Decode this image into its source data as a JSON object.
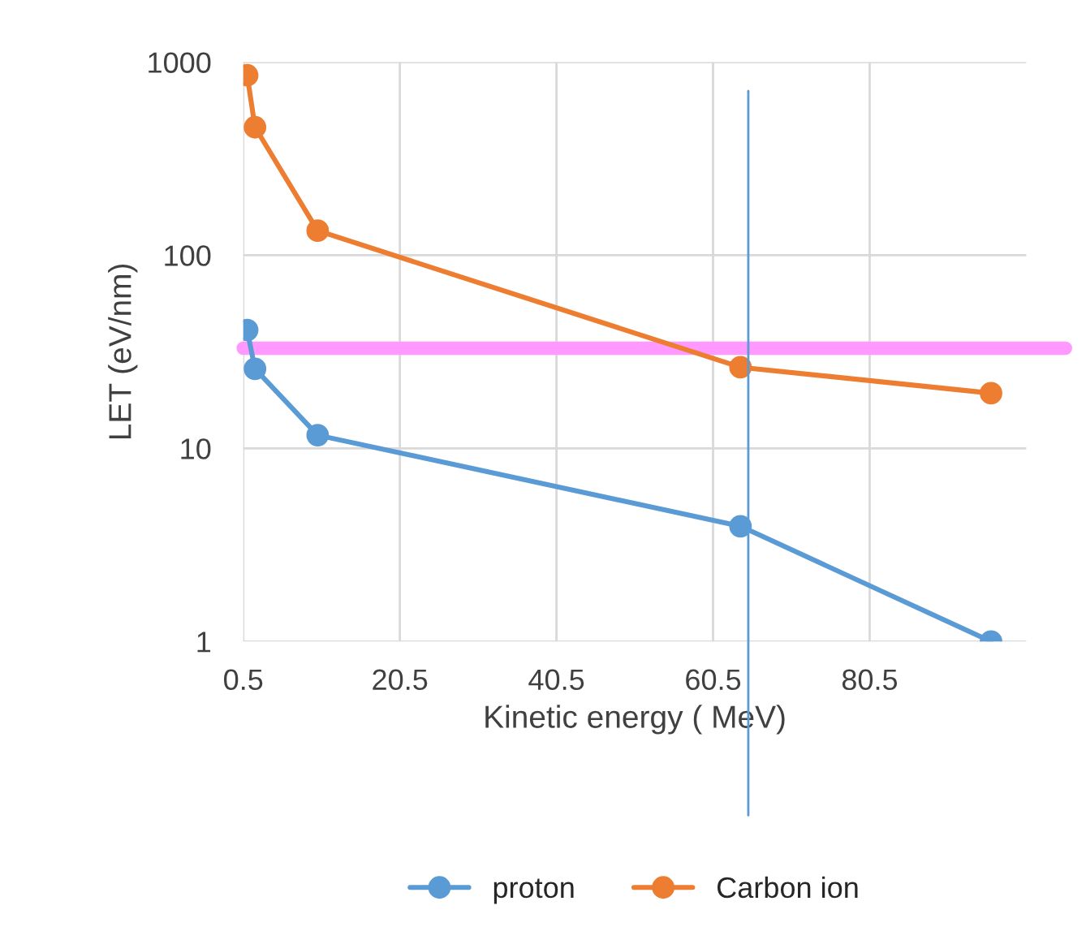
{
  "chart_data": {
    "type": "line",
    "xlabel": "Kinetic energy ( MeV)",
    "ylabel": "LET (eV/nm)",
    "series": [
      {
        "name": "proton",
        "color": "#5b9bd5",
        "x": [
          1,
          2,
          10,
          64,
          96
        ],
        "values": [
          41,
          25.8,
          11.7,
          3.95,
          1
        ]
      },
      {
        "name": "Carbon ion",
        "color": "#ed7d31",
        "x": [
          1,
          2,
          10,
          64,
          96
        ],
        "values": [
          855,
          460,
          134,
          26.3,
          19.3
        ]
      }
    ],
    "xlim": [
      0.5,
      100.5
    ],
    "xticks": [
      0.5,
      20.5,
      40.5,
      60.5,
      80.5
    ],
    "log": "y",
    "ylim": [
      1,
      1000
    ],
    "yticks": [
      1,
      10,
      100,
      1000
    ],
    "ref_lines": [
      {
        "axis": "y",
        "value": 33,
        "color": "#ff99ff"
      },
      {
        "axis": "x",
        "value": 65,
        "color": "#5b9bd5"
      }
    ],
    "grid": true,
    "legend": "bottom",
    "marker": "circle",
    "line_style": "solid"
  }
}
